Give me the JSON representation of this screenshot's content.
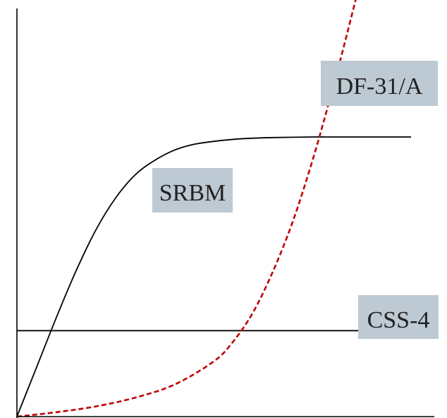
{
  "chart_data": {
    "type": "line",
    "title": "",
    "xlabel": "",
    "ylabel": "",
    "grid": false,
    "series": [
      {
        "name": "SRBM",
        "style": "solid",
        "color": "#000000",
        "x": [
          0,
          5,
          10,
          15,
          20,
          25,
          30,
          35,
          40,
          45,
          50,
          55,
          60,
          65,
          70,
          75,
          80,
          85,
          90,
          95,
          100
        ],
        "y": [
          0,
          17,
          34,
          50,
          64,
          75,
          83,
          88,
          91.5,
          93.5,
          94.5,
          95.2,
          95.6,
          95.8,
          95.9,
          96,
          96,
          96,
          96,
          96,
          96
        ]
      },
      {
        "name": "CSS-4",
        "style": "solid",
        "color": "#000000",
        "x": [
          0,
          100
        ],
        "y": [
          29.5,
          29.5
        ]
      },
      {
        "name": "DF-31/A",
        "style": "dashed",
        "color": "#c00000",
        "x": [
          0,
          10,
          20,
          30,
          40,
          50,
          55,
          60,
          65,
          70,
          75,
          80,
          85,
          90,
          95
        ],
        "y": [
          0,
          1.5,
          3.5,
          6.5,
          11,
          19,
          26,
          36,
          50,
          67,
          88,
          112,
          138,
          166,
          196
        ]
      }
    ],
    "labels": [
      "SRBM",
      "CSS-4",
      "DF-31/A"
    ],
    "label_color": "#bdc9d3"
  }
}
